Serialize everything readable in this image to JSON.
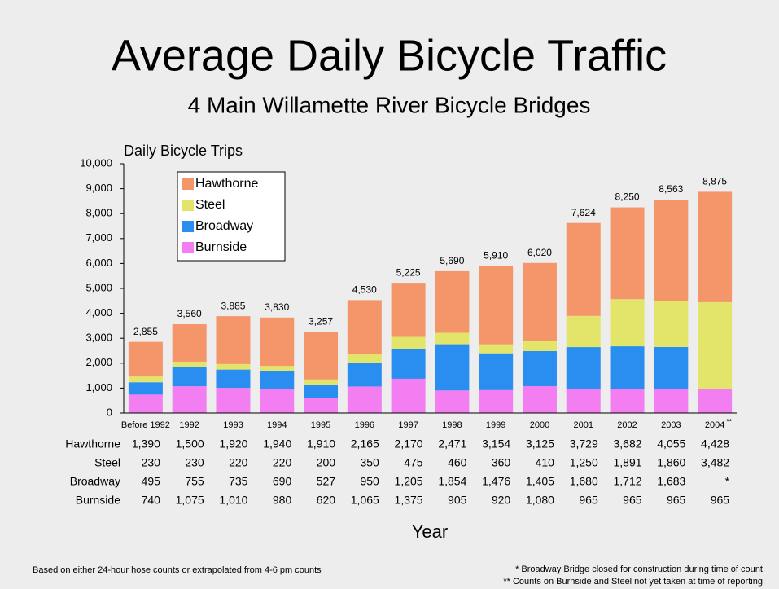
{
  "chart_data": {
    "type": "stacked_bar",
    "title": "Average Daily Bicycle Traffic",
    "subtitle": "4 Main Willamette River Bicycle Bridges",
    "y_label": "Daily Bicycle Trips",
    "x_label": "Year",
    "categories": [
      "Before 1992",
      "1992",
      "1993",
      "1994",
      "1995",
      "1996",
      "1997",
      "1998",
      "1999",
      "2000",
      "2001",
      "2002",
      "2003",
      "2004"
    ],
    "category_notes": [
      null,
      null,
      null,
      null,
      null,
      null,
      null,
      null,
      null,
      null,
      null,
      null,
      null,
      "**"
    ],
    "totals": [
      2855,
      3560,
      3885,
      3830,
      3257,
      4530,
      5225,
      5690,
      5910,
      6020,
      7624,
      8250,
      8563,
      8875
    ],
    "total_labels": [
      "2,855",
      "3,560",
      "3,885",
      "3,830",
      "3,257",
      "4,530",
      "5,225",
      "5,690",
      "5,910",
      "6,020",
      "7,624",
      "8,250",
      "8,563",
      "8,875"
    ],
    "series": [
      {
        "name": "Hawthorne",
        "color": "#f5956a",
        "values": [
          1390,
          1500,
          1920,
          1940,
          1910,
          2165,
          2170,
          2471,
          3154,
          3125,
          3729,
          3682,
          4055,
          4428
        ],
        "value_labels": [
          "1,390",
          "1,500",
          "1,920",
          "1,940",
          "1,910",
          "2,165",
          "2,170",
          "2,471",
          "3,154",
          "3,125",
          "3,729",
          "3,682",
          "4,055",
          "4,428"
        ]
      },
      {
        "name": "Steel",
        "color": "#e3e46a",
        "values": [
          230,
          230,
          220,
          220,
          200,
          350,
          475,
          460,
          360,
          410,
          1250,
          1891,
          1860,
          3482
        ],
        "value_labels": [
          "230",
          "230",
          "220",
          "220",
          "200",
          "350",
          "475",
          "460",
          "360",
          "410",
          "1,250",
          "1,891",
          "1,860",
          "3,482"
        ]
      },
      {
        "name": "Broadway",
        "color": "#2a8df0",
        "values": [
          495,
          755,
          735,
          690,
          527,
          950,
          1205,
          1854,
          1476,
          1405,
          1680,
          1712,
          1683,
          null
        ],
        "value_labels": [
          "495",
          "755",
          "735",
          "690",
          "527",
          "950",
          "1,205",
          "1,854",
          "1,476",
          "1,405",
          "1,680",
          "1,712",
          "1,683",
          "*"
        ]
      },
      {
        "name": "Burnside",
        "color": "#f27ef2",
        "values": [
          740,
          1075,
          1010,
          980,
          620,
          1065,
          1375,
          905,
          920,
          1080,
          965,
          965,
          965,
          965
        ],
        "value_labels": [
          "740",
          "1,075",
          "1,010",
          "980",
          "620",
          "1,065",
          "1,375",
          "905",
          "920",
          "1,080",
          "965",
          "965",
          "965",
          "965"
        ]
      }
    ],
    "ylim": [
      0,
      10000
    ],
    "yticks": [
      0,
      {
        "value": 1000,
        "label": "1,000"
      },
      {
        "value": 2000,
        "label": "2,000"
      },
      {
        "value": 3000,
        "label": "3,000"
      },
      {
        "value": 4000,
        "label": "4,000"
      },
      {
        "value": 5000,
        "label": "5,000"
      },
      {
        "value": 6000,
        "label": "6,000"
      },
      {
        "value": 7000,
        "label": "7,000"
      },
      {
        "value": 8000,
        "label": "8,000"
      },
      {
        "value": 9000,
        "label": "9,000"
      },
      {
        "value": 10000,
        "label": "10,000"
      }
    ],
    "legend": "upper left",
    "footnote_left": "Based on either 24-hour hose counts or extrapolated from 4-6 pm counts",
    "footnotes_right": [
      "* Broadway Bridge closed for construction during time of count.",
      "** Counts on Burnside and Steel not yet taken at time of reporting."
    ]
  }
}
